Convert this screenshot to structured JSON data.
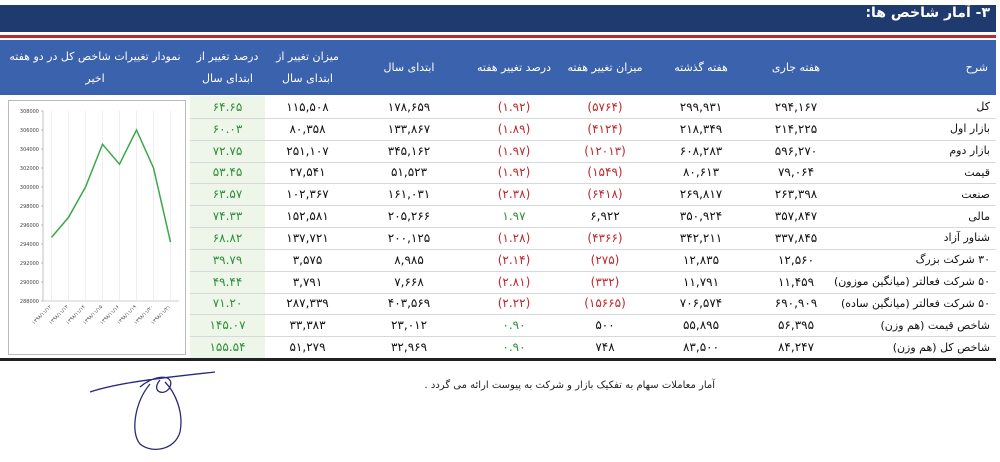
{
  "header": {
    "title": "۳- آمار شاخص ها:"
  },
  "table": {
    "columns": [
      "شرح",
      "هفته جاری",
      "هفته گذشته",
      "میزان تغییر هفته",
      "درصد تغییر هفته",
      "ابتدای سال",
      "میزان تغییر از ابتدای سال",
      "درصد تغییر از ابتدای سال",
      "نمودار تغییرات شاخص کل در دو هفته اخیر"
    ],
    "rows": [
      [
        "کل",
        "۲۹۴,۱۶۷",
        "۲۹۹,۹۳۱",
        "(۵۷۶۴)",
        "(۱.۹۲)",
        "۱۷۸,۶۵۹",
        "۱۱۵,۵۰۸",
        "۶۴.۶۵"
      ],
      [
        "بازار اول",
        "۲۱۴,۲۲۵",
        "۲۱۸,۳۴۹",
        "(۴۱۲۴)",
        "(۱.۸۹)",
        "۱۳۳,۸۶۷",
        "۸۰,۳۵۸",
        "۶۰.۰۳"
      ],
      [
        "بازار دوم",
        "۵۹۶,۲۷۰",
        "۶۰۸,۲۸۳",
        "(۱۲۰۱۳)",
        "(۱.۹۷)",
        "۳۴۵,۱۶۲",
        "۲۵۱,۱۰۷",
        "۷۲.۷۵"
      ],
      [
        "قیمت",
        "۷۹,۰۶۴",
        "۸۰,۶۱۳",
        "(۱۵۴۹)",
        "(۱.۹۲)",
        "۵۱,۵۲۳",
        "۲۷,۵۴۱",
        "۵۳.۴۵"
      ],
      [
        "صنعت",
        "۲۶۳,۳۹۸",
        "۲۶۹,۸۱۷",
        "(۶۴۱۸)",
        "(۲.۳۸)",
        "۱۶۱,۰۳۱",
        "۱۰۲,۳۶۷",
        "۶۳.۵۷"
      ],
      [
        "مالی",
        "۳۵۷,۸۴۷",
        "۳۵۰,۹۲۴",
        "۶,۹۲۲",
        "۱.۹۷",
        "۲۰۵,۲۶۶",
        "۱۵۲,۵۸۱",
        "۷۴.۳۳"
      ],
      [
        "شناور آزاد",
        "۳۳۷,۸۴۵",
        "۳۴۲,۲۱۱",
        "(۴۳۶۶)",
        "(۱.۲۸)",
        "۲۰۰,۱۲۵",
        "۱۳۷,۷۲۱",
        "۶۸.۸۲"
      ],
      [
        "۳۰ شرکت بزرگ",
        "۱۲,۵۶۰",
        "۱۲,۸۳۵",
        "(۲۷۵)",
        "(۲.۱۴)",
        "۸,۹۸۵",
        "۳,۵۷۵",
        "۳۹.۷۹"
      ],
      [
        "۵۰ شرکت فعالتر (میانگین موزون)",
        "۱۱,۴۵۹",
        "۱۱,۷۹۱",
        "(۳۳۲)",
        "(۲.۸۱)",
        "۷,۶۶۸",
        "۳,۷۹۱",
        "۴۹.۴۴"
      ],
      [
        "۵۰ شرکت فعالتر (میانگین ساده)",
        "۶۹۰,۹۰۹",
        "۷۰۶,۵۷۴",
        "(۱۵۶۶۵)",
        "(۲.۲۲)",
        "۴۰۳,۵۶۹",
        "۲۸۷,۳۳۹",
        "۷۱.۲۰"
      ],
      [
        "شاخص قیمت (هم وزن)",
        "۵۶,۳۹۵",
        "۵۵,۸۹۵",
        "۵۰۰",
        "۰.۹۰",
        "۲۳,۰۱۲",
        "۳۳,۳۸۳",
        "۱۴۵.۰۷"
      ],
      [
        "شاخص کل (هم وزن)",
        "۸۴,۲۴۷",
        "۸۳,۵۰۰",
        "۷۴۸",
        "۰.۹۰",
        "۳۲,۹۶۹",
        "۵۱,۲۷۹",
        "۱۵۵.۵۴"
      ]
    ]
  },
  "chart_data": {
    "type": "line",
    "categories": [
      "۱۳۹۸/۱۱/۱۲",
      "۱۳۹۸/۱۱/۱۳",
      "۱۳۹۸/۱۱/۱۴",
      "۱۳۹۸/۱۱/۱۵",
      "۱۳۹۸/۱۱/۱۶",
      "۱۳۹۸/۱۱/۱۹",
      "۱۳۹۸/۱۱/۲۰",
      "۱۳۹۸/۱۱/۲۱"
    ],
    "values": [
      294700,
      296800,
      300000,
      304500,
      302400,
      306000,
      302000,
      294200
    ],
    "color": "#3aa84a",
    "ylim": [
      288000,
      308000
    ],
    "yticks": [
      288000,
      290000,
      292000,
      294000,
      296000,
      298000,
      300000,
      302000,
      304000,
      306000,
      308000
    ]
  },
  "note": "آمار معاملات سهام به تفکیک بازار و شرکت به پیوست ارائه می گردد ."
}
